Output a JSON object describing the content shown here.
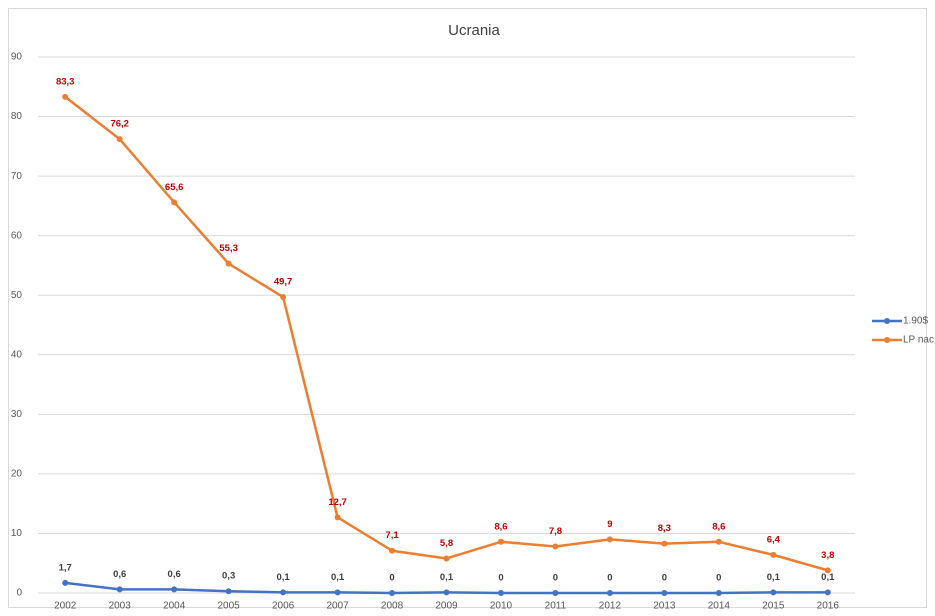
{
  "chart_data": {
    "type": "line",
    "title": "Ucrania",
    "categories": [
      "2002",
      "2003",
      "2004",
      "2005",
      "2006",
      "2007",
      "2008",
      "2009",
      "2010",
      "2011",
      "2012",
      "2013",
      "2014",
      "2015",
      "2016"
    ],
    "series": [
      {
        "name": "1.90$",
        "color": "#4472c4",
        "label_color": "#404040",
        "values": [
          1.7,
          0.6,
          0.6,
          0.3,
          0.1,
          0.1,
          0,
          0.1,
          0,
          0,
          0,
          0,
          0,
          0.1,
          0.1
        ],
        "value_labels": [
          "1,7",
          "0,6",
          "0,6",
          "0,3",
          "0,1",
          "0,1",
          "0",
          "0,1",
          "0",
          "0",
          "0",
          "0",
          "0",
          "0,1",
          "0,1"
        ]
      },
      {
        "name": "LP nac",
        "color": "#ed7d31",
        "label_color": "#c00000",
        "values": [
          83.3,
          76.2,
          65.6,
          55.3,
          49.7,
          12.7,
          7.1,
          5.8,
          8.6,
          7.8,
          9,
          8.3,
          8.6,
          6.4,
          3.8
        ],
        "value_labels": [
          "83,3",
          "76,2",
          "65,6",
          "55,3",
          "49,7",
          "12,7",
          "7,1",
          "5,8",
          "8,6",
          "7,8",
          "9",
          "8,3",
          "8,6",
          "6,4",
          "3,8"
        ]
      }
    ],
    "ylim": [
      0,
      90
    ],
    "yticks": [
      0,
      10,
      20,
      30,
      40,
      50,
      60,
      70,
      80,
      90
    ],
    "grid": true,
    "legend": "right"
  }
}
